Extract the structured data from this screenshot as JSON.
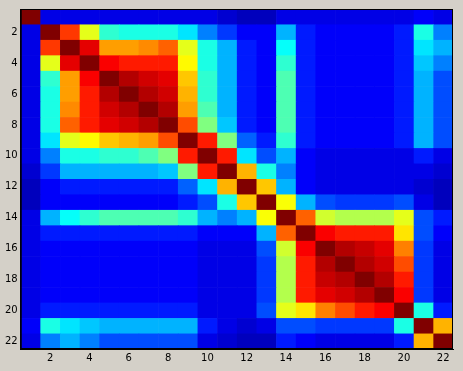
{
  "chart_data": {
    "type": "heatmap",
    "xlim": [
      0.5,
      22.5
    ],
    "ylim": [
      0.5,
      22.5
    ],
    "xticks": [
      2,
      4,
      6,
      8,
      10,
      12,
      14,
      16,
      18,
      20,
      22
    ],
    "yticks": [
      2,
      4,
      6,
      8,
      10,
      12,
      14,
      16,
      18,
      20,
      22
    ],
    "grid": false,
    "clim": [
      0,
      1
    ],
    "cells": [
      [
        1,
        0.1,
        0.1,
        0.1,
        0.1,
        0.1,
        0.1,
        0.1,
        0.1,
        0.1,
        0.08,
        0.06,
        0.06,
        0.1,
        0.1,
        0.1,
        0.1,
        0.1,
        0.1,
        0.1,
        0.12,
        0.1
      ],
      [
        0.1,
        1,
        0.82,
        0.6,
        0.42,
        0.4,
        0.4,
        0.4,
        0.35,
        0.25,
        0.18,
        0.12,
        0.12,
        0.3,
        0.15,
        0.12,
        0.12,
        0.12,
        0.12,
        0.15,
        0.4,
        0.25
      ],
      [
        0.1,
        0.82,
        1,
        0.9,
        0.72,
        0.72,
        0.74,
        0.78,
        0.6,
        0.4,
        0.3,
        0.15,
        0.12,
        0.38,
        0.15,
        0.12,
        0.12,
        0.12,
        0.12,
        0.15,
        0.35,
        0.3
      ],
      [
        0.1,
        0.6,
        0.9,
        1,
        0.88,
        0.85,
        0.85,
        0.85,
        0.63,
        0.4,
        0.3,
        0.15,
        0.12,
        0.42,
        0.15,
        0.12,
        0.12,
        0.12,
        0.12,
        0.15,
        0.32,
        0.25
      ],
      [
        0.1,
        0.42,
        0.72,
        0.88,
        1,
        0.95,
        0.92,
        0.9,
        0.68,
        0.42,
        0.3,
        0.15,
        0.12,
        0.45,
        0.15,
        0.12,
        0.12,
        0.12,
        0.12,
        0.15,
        0.3,
        0.2
      ],
      [
        0.1,
        0.4,
        0.72,
        0.85,
        0.95,
        1,
        0.95,
        0.92,
        0.7,
        0.42,
        0.3,
        0.15,
        0.12,
        0.45,
        0.15,
        0.12,
        0.12,
        0.12,
        0.12,
        0.15,
        0.3,
        0.2
      ],
      [
        0.1,
        0.4,
        0.74,
        0.85,
        0.92,
        0.95,
        1,
        0.95,
        0.72,
        0.45,
        0.3,
        0.15,
        0.12,
        0.45,
        0.15,
        0.12,
        0.12,
        0.12,
        0.12,
        0.15,
        0.3,
        0.2
      ],
      [
        0.1,
        0.4,
        0.78,
        0.85,
        0.9,
        0.92,
        0.95,
        1,
        0.8,
        0.5,
        0.32,
        0.15,
        0.12,
        0.45,
        0.15,
        0.12,
        0.12,
        0.12,
        0.12,
        0.15,
        0.3,
        0.2
      ],
      [
        0.1,
        0.35,
        0.6,
        0.63,
        0.68,
        0.7,
        0.72,
        0.8,
        1,
        0.85,
        0.5,
        0.22,
        0.15,
        0.42,
        0.15,
        0.12,
        0.12,
        0.12,
        0.12,
        0.15,
        0.3,
        0.2
      ],
      [
        0.1,
        0.25,
        0.4,
        0.4,
        0.42,
        0.42,
        0.45,
        0.5,
        0.85,
        1,
        0.85,
        0.35,
        0.2,
        0.3,
        0.12,
        0.1,
        0.1,
        0.1,
        0.1,
        0.1,
        0.15,
        0.1
      ],
      [
        0.08,
        0.18,
        0.3,
        0.3,
        0.3,
        0.3,
        0.3,
        0.32,
        0.5,
        0.85,
        1,
        0.7,
        0.4,
        0.25,
        0.12,
        0.1,
        0.1,
        0.1,
        0.1,
        0.1,
        0.1,
        0.08
      ],
      [
        0.06,
        0.12,
        0.15,
        0.15,
        0.15,
        0.15,
        0.15,
        0.15,
        0.22,
        0.35,
        0.7,
        1,
        0.68,
        0.3,
        0.12,
        0.1,
        0.1,
        0.1,
        0.1,
        0.1,
        0.08,
        0.06
      ],
      [
        0.06,
        0.12,
        0.12,
        0.12,
        0.12,
        0.12,
        0.12,
        0.12,
        0.15,
        0.2,
        0.4,
        0.68,
        1,
        0.62,
        0.3,
        0.2,
        0.18,
        0.18,
        0.18,
        0.2,
        0.1,
        0.06
      ],
      [
        0.1,
        0.3,
        0.38,
        0.42,
        0.45,
        0.45,
        0.45,
        0.45,
        0.42,
        0.3,
        0.25,
        0.3,
        0.62,
        1,
        0.78,
        0.58,
        0.55,
        0.55,
        0.55,
        0.6,
        0.2,
        0.15
      ],
      [
        0.1,
        0.15,
        0.15,
        0.15,
        0.15,
        0.15,
        0.15,
        0.15,
        0.15,
        0.12,
        0.12,
        0.12,
        0.3,
        0.78,
        1,
        0.88,
        0.85,
        0.85,
        0.85,
        0.65,
        0.2,
        0.12
      ],
      [
        0.1,
        0.12,
        0.12,
        0.12,
        0.12,
        0.12,
        0.12,
        0.12,
        0.12,
        0.1,
        0.1,
        0.1,
        0.2,
        0.58,
        0.88,
        1,
        0.95,
        0.93,
        0.9,
        0.75,
        0.18,
        0.1
      ],
      [
        0.1,
        0.12,
        0.12,
        0.12,
        0.12,
        0.12,
        0.12,
        0.12,
        0.12,
        0.1,
        0.1,
        0.1,
        0.18,
        0.55,
        0.85,
        0.95,
        1,
        0.95,
        0.92,
        0.8,
        0.18,
        0.1
      ],
      [
        0.1,
        0.12,
        0.12,
        0.12,
        0.12,
        0.12,
        0.12,
        0.12,
        0.12,
        0.1,
        0.1,
        0.1,
        0.18,
        0.55,
        0.85,
        0.93,
        0.95,
        1,
        0.95,
        0.85,
        0.18,
        0.1
      ],
      [
        0.1,
        0.12,
        0.12,
        0.12,
        0.12,
        0.12,
        0.12,
        0.12,
        0.12,
        0.1,
        0.1,
        0.1,
        0.18,
        0.55,
        0.85,
        0.9,
        0.92,
        0.95,
        1,
        0.88,
        0.18,
        0.1
      ],
      [
        0.1,
        0.15,
        0.15,
        0.15,
        0.15,
        0.15,
        0.15,
        0.15,
        0.15,
        0.1,
        0.1,
        0.1,
        0.2,
        0.6,
        0.65,
        0.75,
        0.8,
        0.85,
        0.88,
        1,
        0.4,
        0.15
      ],
      [
        0.12,
        0.4,
        0.35,
        0.32,
        0.3,
        0.3,
        0.3,
        0.3,
        0.3,
        0.15,
        0.1,
        0.08,
        0.1,
        0.2,
        0.2,
        0.18,
        0.18,
        0.18,
        0.18,
        0.4,
        1,
        0.7
      ],
      [
        0.1,
        0.25,
        0.3,
        0.25,
        0.2,
        0.2,
        0.2,
        0.2,
        0.2,
        0.1,
        0.08,
        0.06,
        0.06,
        0.15,
        0.12,
        0.1,
        0.1,
        0.1,
        0.1,
        0.15,
        0.7,
        1
      ]
    ]
  }
}
